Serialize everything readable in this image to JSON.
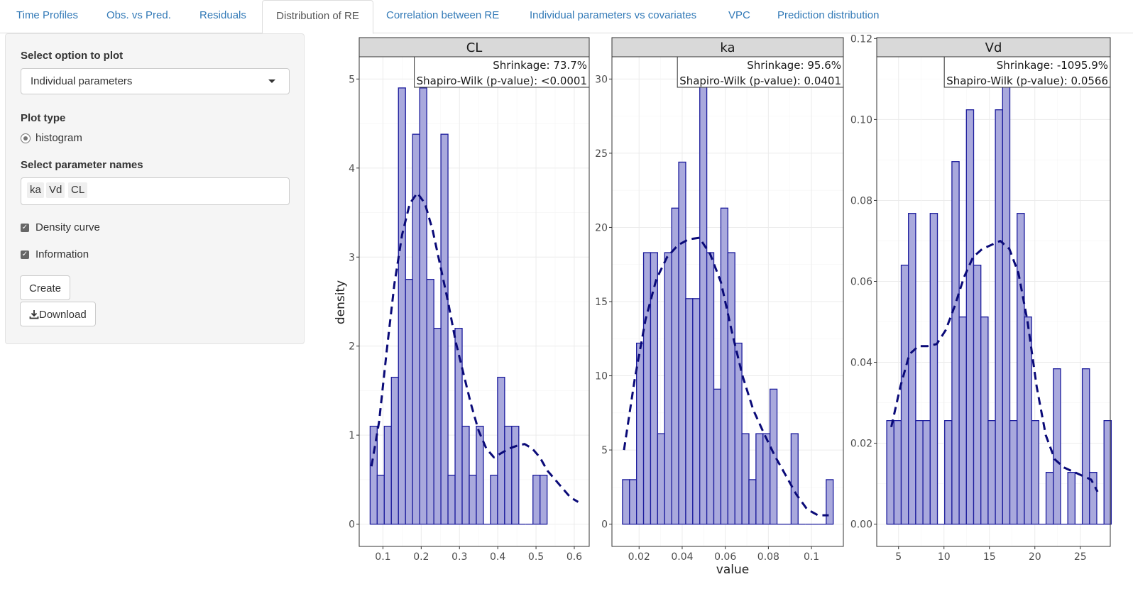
{
  "tabs": [
    {
      "label": "Time Profiles"
    },
    {
      "label": "Obs. vs Pred."
    },
    {
      "label": "Residuals"
    },
    {
      "label": "Distribution of RE"
    },
    {
      "label": "Correlation between RE"
    },
    {
      "label": "Individual parameters vs covariates"
    },
    {
      "label": "VPC"
    },
    {
      "label": "Prediction distribution"
    }
  ],
  "sidebar": {
    "select_option_label": "Select option to plot",
    "select_option_value": "Individual parameters",
    "plot_type_label": "Plot type",
    "plot_type_option": "histogram",
    "param_names_label": "Select parameter names",
    "param_chips": [
      "ka",
      "Vd",
      "CL"
    ],
    "density_label": "Density curve",
    "information_label": "Information",
    "create_label": "Create",
    "download_label": "Download"
  },
  "colors": {
    "bar_fill": "#a9a9dd",
    "bar_stroke": "#1c1c9c",
    "curve": "#0a0a78",
    "strip": "#d9d9d9",
    "accent": "#337ab7"
  },
  "chart_data": [
    {
      "type": "bar",
      "title": "CL",
      "xlabel": "value",
      "ylabel": "density",
      "info": {
        "shrinkage": "Shrinkage: 73.7%",
        "shapiro": "Shapiro-Wilk (p-value): <0.0001"
      },
      "xlim": [
        0.038,
        0.639
      ],
      "ylim": [
        -0.25,
        5.25
      ],
      "xticks": [
        0.1,
        0.2,
        0.3,
        0.4,
        0.5,
        0.6
      ],
      "yticks": [
        0,
        1,
        2,
        3,
        4,
        5
      ],
      "bin_start": 0.0665,
      "bin_width": 0.0185,
      "values": [
        1.1,
        0.55,
        1.1,
        1.65,
        4.9,
        2.75,
        4.38,
        4.9,
        2.75,
        2.2,
        4.38,
        0.55,
        2.2,
        1.1,
        0.55,
        1.1,
        0,
        0.55,
        1.65,
        1.1,
        1.1,
        0,
        0,
        0.55,
        0.55
      ],
      "density_curve": {
        "x": [
          0.07,
          0.09,
          0.11,
          0.13,
          0.15,
          0.17,
          0.19,
          0.21,
          0.23,
          0.25,
          0.27,
          0.29,
          0.31,
          0.33,
          0.35,
          0.37,
          0.39,
          0.41,
          0.43,
          0.45,
          0.47,
          0.49,
          0.51,
          0.53,
          0.55,
          0.57,
          0.59,
          0.61
        ],
        "y": [
          0.65,
          1.15,
          1.95,
          2.7,
          3.25,
          3.6,
          3.72,
          3.6,
          3.3,
          2.9,
          2.5,
          2.05,
          1.7,
          1.35,
          1.05,
          0.85,
          0.75,
          0.8,
          0.85,
          0.88,
          0.9,
          0.85,
          0.75,
          0.6,
          0.5,
          0.4,
          0.3,
          0.25
        ]
      }
    },
    {
      "type": "bar",
      "title": "ka",
      "xlabel": "value",
      "ylabel": "",
      "info": {
        "shrinkage": "Shrinkage: 95.6%",
        "shapiro": "Shapiro-Wilk (p-value): 0.0401"
      },
      "xlim": [
        0.0074,
        0.1148
      ],
      "ylim": [
        -1.5,
        31.5
      ],
      "xticks": [
        0.02,
        0.04,
        0.06,
        0.08,
        0.1
      ],
      "yticks": [
        0,
        5,
        10,
        15,
        20,
        25,
        30
      ],
      "bin_start": 0.0123,
      "bin_width": 0.00326,
      "values": [
        3,
        3,
        12.2,
        18.3,
        18.3,
        6.1,
        18.3,
        21.3,
        24.4,
        15.2,
        15.2,
        30.5,
        18.3,
        9.1,
        21.3,
        18.3,
        12.2,
        6.1,
        3,
        6.1,
        6.1,
        9.1,
        0,
        0,
        6.1,
        0,
        0,
        0,
        0,
        3
      ],
      "density_curve": {
        "x": [
          0.013,
          0.018,
          0.023,
          0.028,
          0.033,
          0.038,
          0.043,
          0.048,
          0.053,
          0.058,
          0.063,
          0.068,
          0.073,
          0.078,
          0.083,
          0.088,
          0.093,
          0.098,
          0.103,
          0.108
        ],
        "y": [
          5,
          9.8,
          13.8,
          16.5,
          18,
          18.8,
          19.2,
          19.3,
          18.2,
          16.3,
          13,
          10,
          7.7,
          6.1,
          4.6,
          3.3,
          2,
          1,
          0.6,
          0.6
        ]
      }
    },
    {
      "type": "bar",
      "title": "Vd",
      "xlabel": "value",
      "ylabel": "",
      "info": {
        "shrinkage": "Shrinkage: -1095.9%",
        "shapiro": "Shapiro-Wilk (p-value): 0.0566"
      },
      "xlim": [
        2.6,
        28.3
      ],
      "ylim": [
        -0.0055,
        0.1155
      ],
      "xticks": [
        5,
        10,
        15,
        20,
        25
      ],
      "yticks": [
        0.0,
        0.02,
        0.04,
        0.06,
        0.08,
        0.1,
        0.12
      ],
      "ytick_labels": [
        "0.00",
        "0.02",
        "0.04",
        "0.06",
        "0.08",
        "0.10",
        "0.12"
      ],
      "bin_start": 3.7,
      "bin_width": 0.797,
      "values": [
        0.0256,
        0.0256,
        0.064,
        0.0768,
        0.0256,
        0.0256,
        0.0768,
        0,
        0.0256,
        0.0896,
        0.0512,
        0.1024,
        0.064,
        0.0512,
        0.0256,
        0.1024,
        0.1152,
        0.0256,
        0.0768,
        0.0512,
        0.0256,
        0,
        0.0128,
        0.0384,
        0,
        0.0128,
        0,
        0.0384,
        0.0128,
        0,
        0.0256
      ],
      "density_curve": {
        "x": [
          4.2,
          5.2,
          6.2,
          7.2,
          8.2,
          9.2,
          10.2,
          11.2,
          12.2,
          13.2,
          14.2,
          15.2,
          16.2,
          17.2,
          18.2,
          19.2,
          20.2,
          21.2,
          22.2,
          23.2,
          24.2,
          25.2,
          26.2,
          26.9
        ],
        "y": [
          0.024,
          0.034,
          0.042,
          0.044,
          0.044,
          0.0445,
          0.048,
          0.054,
          0.061,
          0.066,
          0.068,
          0.069,
          0.07,
          0.068,
          0.062,
          0.05,
          0.034,
          0.022,
          0.016,
          0.014,
          0.013,
          0.012,
          0.011,
          0.008
        ]
      }
    }
  ]
}
